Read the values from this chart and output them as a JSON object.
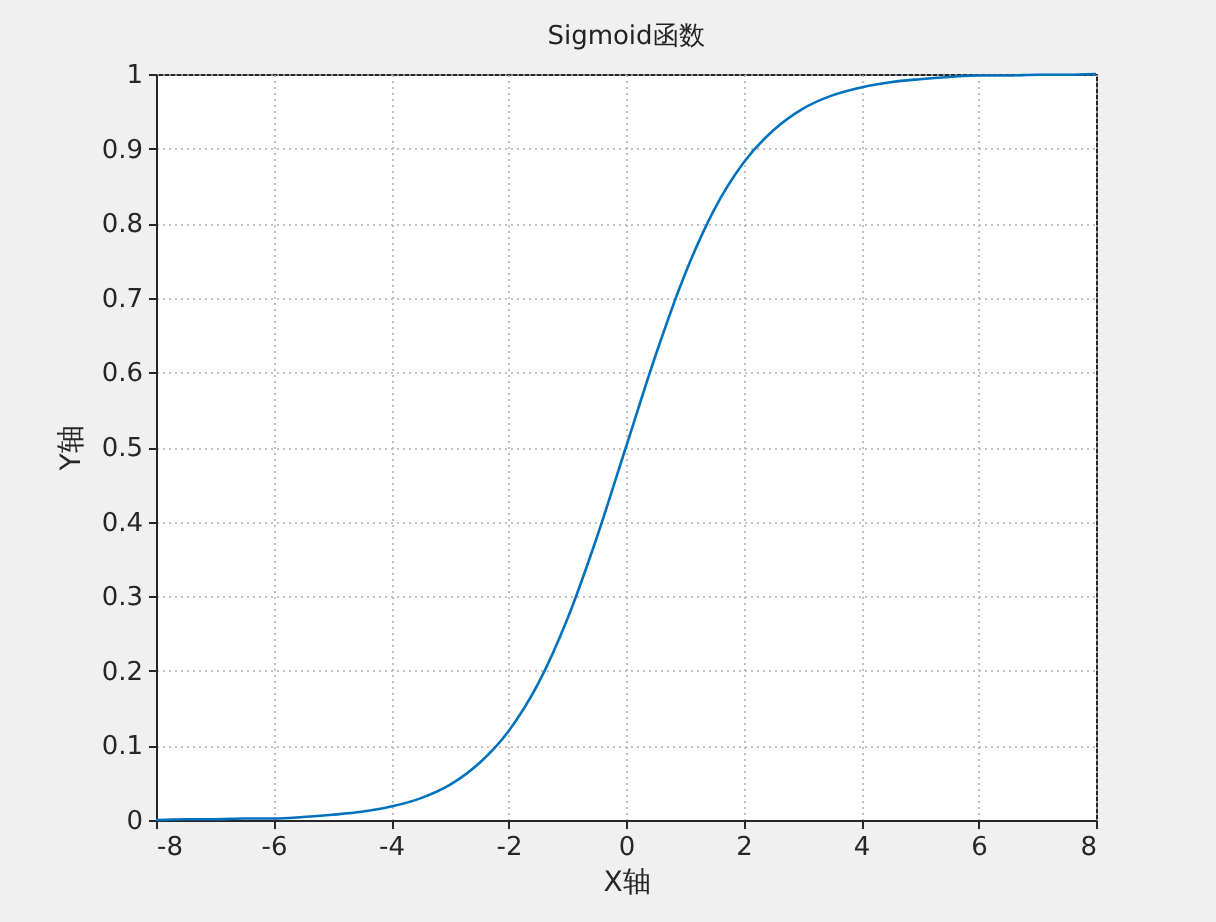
{
  "chart_data": {
    "type": "line",
    "title": "Sigmoid函数",
    "xlabel": "X轴",
    "ylabel": "Y轴",
    "x": [
      -8,
      -7.5,
      -7,
      -6.5,
      -6,
      -5.5,
      -5,
      -4.5,
      -4,
      -3.5,
      -3,
      -2.5,
      -2,
      -1.5,
      -1,
      -0.5,
      0,
      0.5,
      1,
      1.5,
      2,
      2.5,
      3,
      3.5,
      4,
      4.5,
      5,
      5.5,
      6,
      6.5,
      7,
      7.5,
      8
    ],
    "series": [
      {
        "color": "#0072bd",
        "values": [
          0.0,
          0.001,
          0.001,
          0.002,
          0.002,
          0.004,
          0.007,
          0.011,
          0.018,
          0.029,
          0.047,
          0.076,
          0.119,
          0.182,
          0.269,
          0.378,
          0.5,
          0.622,
          0.731,
          0.818,
          0.881,
          0.924,
          0.953,
          0.971,
          0.982,
          0.989,
          0.993,
          0.996,
          0.998,
          0.998,
          0.999,
          0.999,
          1.0
        ]
      }
    ],
    "xlim": [
      -8,
      8
    ],
    "xticks": [
      -8,
      -6,
      -4,
      -2,
      0,
      2,
      4,
      6,
      8
    ],
    "ylim": [
      0,
      1
    ],
    "yticks": [
      0,
      0.1,
      0.2,
      0.3,
      0.4,
      0.5,
      0.6,
      0.7,
      0.8,
      0.9,
      1
    ],
    "grid": true,
    "marker": "none",
    "line_style": "solid"
  }
}
